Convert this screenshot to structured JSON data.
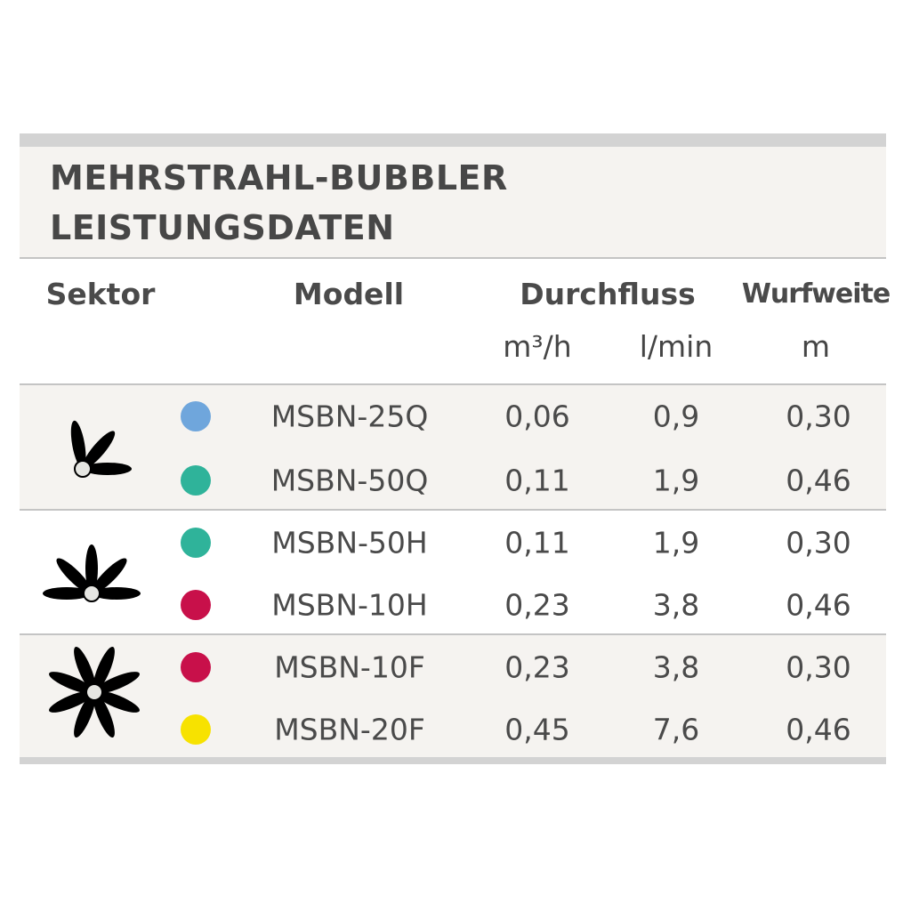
{
  "title": {
    "line1": "MEHRSTRAHL-BUBBLER",
    "line2": "LEISTUNGSDATEN"
  },
  "headers": {
    "sektor": "Sektor",
    "modell": "Modell",
    "durchfluss": "Durchfluss",
    "wurfweite": "Wurfweite",
    "unit_m3h": "m³/h",
    "unit_lmin": "l/min",
    "unit_m": "m"
  },
  "groups": [
    {
      "sector": "quarter",
      "icon": "quarter-circle-spray-icon",
      "rows": [
        {
          "color": "#6fa6dc",
          "model": "MSBN-25Q",
          "m3h": "0,06",
          "lmin": "0,9",
          "m": "0,30"
        },
        {
          "color": "#2fb39a",
          "model": "MSBN-50Q",
          "m3h": "0,11",
          "lmin": "1,9",
          "m": "0,46"
        }
      ]
    },
    {
      "sector": "half",
      "icon": "half-circle-spray-icon",
      "rows": [
        {
          "color": "#2fb39a",
          "model": "MSBN-50H",
          "m3h": "0,11",
          "lmin": "1,9",
          "m": "0,30"
        },
        {
          "color": "#c8104a",
          "model": "MSBN-10H",
          "m3h": "0,23",
          "lmin": "3,8",
          "m": "0,46"
        }
      ]
    },
    {
      "sector": "full",
      "icon": "full-circle-spray-icon",
      "rows": [
        {
          "color": "#c8104a",
          "model": "MSBN-10F",
          "m3h": "0,23",
          "lmin": "3,8",
          "m": "0,30"
        },
        {
          "color": "#f7e200",
          "model": "MSBN-20F",
          "m3h": "0,45",
          "lmin": "7,6",
          "m": "0,46"
        }
      ]
    }
  ]
}
